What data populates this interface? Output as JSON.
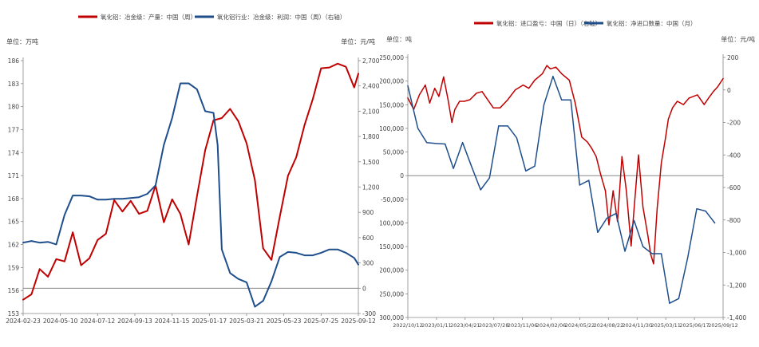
{
  "chart_data": [
    {
      "type": "line",
      "title": "",
      "legend_position": "top-center",
      "grid": false,
      "y_left": {
        "label": "单位：万吨",
        "ticks": [
          "153",
          "156",
          "159",
          "162",
          "165",
          "168",
          "171",
          "174",
          "177",
          "180",
          "183",
          "186"
        ],
        "lim": [
          153,
          186
        ]
      },
      "y_right": {
        "label": "单位：元/吨",
        "ticks": [
          "-300",
          "0",
          "300",
          "600",
          "900",
          "1,200",
          "1,500",
          "1,800",
          "2,100",
          "2,400",
          "2,700"
        ],
        "lim": [
          -300,
          2700
        ]
      },
      "x_ticks": [
        "2024-02-23",
        "2024-05-10",
        "2024-07-12",
        "2024-09-13",
        "2024-11-15",
        "2025-01-17",
        "2025-03-21",
        "2025-05-23",
        "2025-07-25",
        "2025-09-12"
      ],
      "x_range": [
        "2024-02-23",
        "2025-09-12"
      ],
      "series": [
        {
          "name": "氧化铝：冶金级：产量：中国（周）",
          "axis": "left",
          "color": "#C00000",
          "points": [
            [
              "2024-02-23",
              154.8
            ],
            [
              "2024-03-08",
              155.5
            ],
            [
              "2024-03-22",
              158.8
            ],
            [
              "2024-04-05",
              157.8
            ],
            [
              "2024-04-19",
              160.1
            ],
            [
              "2024-05-03",
              159.8
            ],
            [
              "2024-05-17",
              163.6
            ],
            [
              "2024-05-31",
              159.3
            ],
            [
              "2024-06-14",
              160.2
            ],
            [
              "2024-06-28",
              162.6
            ],
            [
              "2024-07-12",
              163.4
            ],
            [
              "2024-07-26",
              167.8
            ],
            [
              "2024-08-09",
              166.3
            ],
            [
              "2024-08-23",
              167.7
            ],
            [
              "2024-09-06",
              166.0
            ],
            [
              "2024-09-20",
              166.4
            ],
            [
              "2024-10-04",
              169.7
            ],
            [
              "2024-10-18",
              164.9
            ],
            [
              "2024-11-01",
              167.9
            ],
            [
              "2024-11-15",
              166.0
            ],
            [
              "2024-11-29",
              162.0
            ],
            [
              "2024-12-13",
              168.3
            ],
            [
              "2024-12-27",
              174.3
            ],
            [
              "2025-01-10",
              178.2
            ],
            [
              "2025-01-24",
              178.5
            ],
            [
              "2025-02-07",
              179.7
            ],
            [
              "2025-02-21",
              178.1
            ],
            [
              "2025-03-07",
              175.2
            ],
            [
              "2025-03-21",
              170.4
            ],
            [
              "2025-04-04",
              161.5
            ],
            [
              "2025-04-18",
              160.0
            ],
            [
              "2025-05-02",
              165.6
            ],
            [
              "2025-05-16",
              171.0
            ],
            [
              "2025-05-30",
              173.4
            ],
            [
              "2025-06-13",
              177.6
            ],
            [
              "2025-06-27",
              181.0
            ],
            [
              "2025-07-11",
              185.0
            ],
            [
              "2025-07-25",
              185.1
            ],
            [
              "2025-08-08",
              185.6
            ],
            [
              "2025-08-22",
              185.2
            ],
            [
              "2025-09-05",
              182.5
            ],
            [
              "2025-09-12",
              184.3
            ]
          ]
        },
        {
          "name": "氧化铝行业：冶金级：利润：中国（周）（右轴）",
          "axis": "right",
          "color": "#1F4E8C",
          "points": [
            [
              "2024-02-23",
              540
            ],
            [
              "2024-03-08",
              560
            ],
            [
              "2024-03-22",
              540
            ],
            [
              "2024-04-05",
              550
            ],
            [
              "2024-04-19",
              520
            ],
            [
              "2024-05-03",
              870
            ],
            [
              "2024-05-17",
              1100
            ],
            [
              "2024-05-31",
              1100
            ],
            [
              "2024-06-14",
              1090
            ],
            [
              "2024-06-28",
              1050
            ],
            [
              "2024-07-12",
              1050
            ],
            [
              "2024-07-26",
              1060
            ],
            [
              "2024-08-09",
              1060
            ],
            [
              "2024-08-23",
              1070
            ],
            [
              "2024-09-06",
              1080
            ],
            [
              "2024-09-20",
              1120
            ],
            [
              "2024-10-04",
              1220
            ],
            [
              "2024-10-18",
              1700
            ],
            [
              "2024-11-01",
              2020
            ],
            [
              "2024-11-15",
              2430
            ],
            [
              "2024-11-29",
              2430
            ],
            [
              "2024-12-13",
              2360
            ],
            [
              "2024-12-27",
              2100
            ],
            [
              "2025-01-10",
              2080
            ],
            [
              "2025-01-17",
              1700
            ],
            [
              "2025-01-24",
              460
            ],
            [
              "2025-02-07",
              180
            ],
            [
              "2025-02-21",
              110
            ],
            [
              "2025-03-07",
              70
            ],
            [
              "2025-03-21",
              -220
            ],
            [
              "2025-04-04",
              -150
            ],
            [
              "2025-04-18",
              80
            ],
            [
              "2025-05-02",
              370
            ],
            [
              "2025-05-16",
              430
            ],
            [
              "2025-05-30",
              420
            ],
            [
              "2025-06-13",
              390
            ],
            [
              "2025-06-27",
              390
            ],
            [
              "2025-07-11",
              420
            ],
            [
              "2025-07-25",
              460
            ],
            [
              "2025-08-08",
              460
            ],
            [
              "2025-08-22",
              420
            ],
            [
              "2025-09-05",
              360
            ],
            [
              "2025-09-12",
              280
            ]
          ]
        }
      ]
    },
    {
      "type": "line",
      "title": "",
      "legend_position": "top-center",
      "grid": false,
      "y_left": {
        "label": "单位：吨",
        "ticks": [
          "250,000",
          "200,000",
          "150,000",
          "100,000",
          "50,000",
          "0",
          "-50,000",
          "-100,000",
          "-150,000",
          "-200,000",
          "-250,000",
          "-300,000"
        ],
        "lim": [
          -300000,
          250000
        ]
      },
      "y_right": {
        "label": "单位：元/吨",
        "ticks": [
          "200",
          "0",
          "-200",
          "-400",
          "-600",
          "-800",
          "-1,000",
          "-1,200",
          "-1,400"
        ],
        "lim": [
          -1400,
          200
        ]
      },
      "x_ticks": [
        "2022/10/12",
        "2023/01/11",
        "2023/04/21",
        "2023/07/28",
        "2023/11/06",
        "2024/02/06",
        "2024/05/22",
        "2024/08/22",
        "2024/11/30",
        "2025/03/11",
        "2025/06/17",
        "2025/09/12"
      ],
      "x_range": [
        "2022-10-12",
        "2025-09-12"
      ],
      "series": [
        {
          "name": "氧化铝：进口盈亏：中国（日）（右轴）",
          "axis": "right",
          "color": "#C00000",
          "points": [
            [
              "2022-10-12",
              -50
            ],
            [
              "2022-11-01",
              -120
            ],
            [
              "2022-11-20",
              -30
            ],
            [
              "2022-12-10",
              30
            ],
            [
              "2022-12-25",
              -80
            ],
            [
              "2023-01-11",
              10
            ],
            [
              "2023-01-25",
              -40
            ],
            [
              "2023-02-10",
              80
            ],
            [
              "2023-02-25",
              -60
            ],
            [
              "2023-03-10",
              -200
            ],
            [
              "2023-03-20",
              -120
            ],
            [
              "2023-04-05",
              -70
            ],
            [
              "2023-04-21",
              -70
            ],
            [
              "2023-05-10",
              -60
            ],
            [
              "2023-06-01",
              -20
            ],
            [
              "2023-06-20",
              -10
            ],
            [
              "2023-07-05",
              -50
            ],
            [
              "2023-07-28",
              -110
            ],
            [
              "2023-08-20",
              -110
            ],
            [
              "2023-09-15",
              -60
            ],
            [
              "2023-10-10",
              0
            ],
            [
              "2023-11-06",
              30
            ],
            [
              "2023-11-25",
              10
            ],
            [
              "2023-12-15",
              60
            ],
            [
              "2024-01-10",
              100
            ],
            [
              "2024-01-25",
              150
            ],
            [
              "2024-02-06",
              130
            ],
            [
              "2024-02-25",
              140
            ],
            [
              "2024-03-15",
              100
            ],
            [
              "2024-04-10",
              60
            ],
            [
              "2024-04-30",
              -80
            ],
            [
              "2024-05-22",
              -290
            ],
            [
              "2024-06-10",
              -320
            ],
            [
              "2024-06-25",
              -360
            ],
            [
              "2024-07-10",
              -410
            ],
            [
              "2024-07-25",
              -520
            ],
            [
              "2024-08-10",
              -620
            ],
            [
              "2024-08-22",
              -830
            ],
            [
              "2024-09-05",
              -620
            ],
            [
              "2024-09-20",
              -810
            ],
            [
              "2024-10-05",
              -410
            ],
            [
              "2024-10-20",
              -620
            ],
            [
              "2024-11-05",
              -960
            ],
            [
              "2024-11-15",
              -730
            ],
            [
              "2024-11-30",
              -400
            ],
            [
              "2024-12-15",
              -720
            ],
            [
              "2025-01-01",
              -900
            ],
            [
              "2025-01-10",
              -1010
            ],
            [
              "2025-01-20",
              -1070
            ],
            [
              "2025-02-01",
              -730
            ],
            [
              "2025-02-15",
              -450
            ],
            [
              "2025-03-01",
              -300
            ],
            [
              "2025-03-11",
              -180
            ],
            [
              "2025-03-25",
              -110
            ],
            [
              "2025-04-10",
              -70
            ],
            [
              "2025-05-01",
              -90
            ],
            [
              "2025-05-20",
              -50
            ],
            [
              "2025-06-17",
              -30
            ],
            [
              "2025-07-10",
              -90
            ],
            [
              "2025-07-25",
              -50
            ],
            [
              "2025-08-10",
              -10
            ],
            [
              "2025-08-25",
              20
            ],
            [
              "2025-09-12",
              70
            ]
          ]
        },
        {
          "name": "氧化铝：净进口数量：中国（月）",
          "axis": "left",
          "color": "#1F4E8C",
          "points": [
            [
              "2022-10-12",
              190000
            ],
            [
              "2022-11-15",
              100000
            ],
            [
              "2022-12-15",
              70000
            ],
            [
              "2023-01-15",
              68000
            ],
            [
              "2023-02-15",
              67000
            ],
            [
              "2023-03-15",
              15000
            ],
            [
              "2023-04-15",
              70000
            ],
            [
              "2023-05-15",
              20000
            ],
            [
              "2023-06-15",
              -30000
            ],
            [
              "2023-07-15",
              -5000
            ],
            [
              "2023-08-15",
              105000
            ],
            [
              "2023-09-15",
              105000
            ],
            [
              "2023-10-15",
              80000
            ],
            [
              "2023-11-15",
              10000
            ],
            [
              "2023-12-15",
              20000
            ],
            [
              "2024-01-15",
              150000
            ],
            [
              "2024-02-15",
              210000
            ],
            [
              "2024-03-15",
              160000
            ],
            [
              "2024-04-15",
              160000
            ],
            [
              "2024-05-15",
              -20000
            ],
            [
              "2024-06-15",
              -10000
            ],
            [
              "2024-07-15",
              -120000
            ],
            [
              "2024-08-15",
              -90000
            ],
            [
              "2024-09-15",
              -80000
            ],
            [
              "2024-10-15",
              -160000
            ],
            [
              "2024-11-15",
              -95000
            ],
            [
              "2024-12-15",
              -150000
            ],
            [
              "2025-01-15",
              -165000
            ],
            [
              "2025-02-15",
              -165000
            ],
            [
              "2025-03-15",
              -270000
            ],
            [
              "2025-04-15",
              -260000
            ],
            [
              "2025-05-15",
              -175000
            ],
            [
              "2025-06-15",
              -70000
            ],
            [
              "2025-07-15",
              -75000
            ],
            [
              "2025-08-15",
              -100000
            ]
          ]
        }
      ]
    }
  ]
}
